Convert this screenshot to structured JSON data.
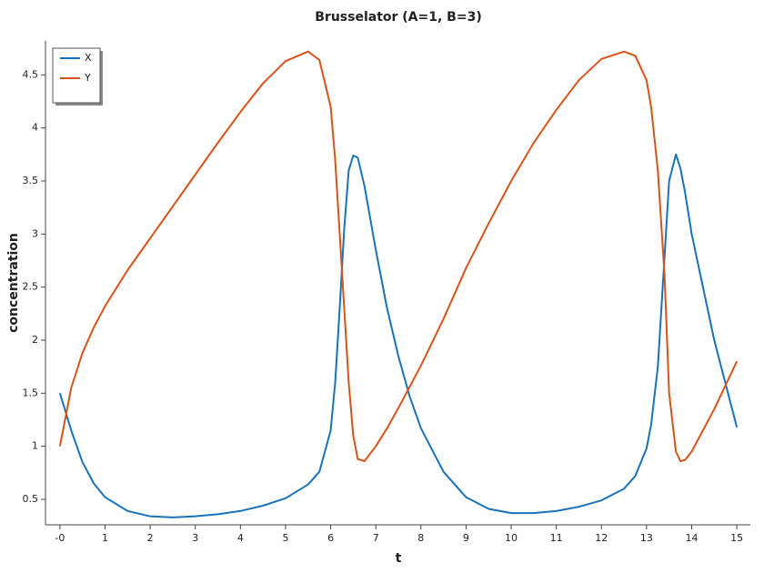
{
  "chart_data": {
    "type": "line",
    "title": "Brusselator (A=1, B=3)",
    "xlabel": "t",
    "ylabel": "concentration",
    "x": [
      0,
      0.25,
      0.5,
      0.75,
      1,
      1.5,
      2,
      2.5,
      3,
      3.5,
      4,
      4.5,
      5,
      5.5,
      5.75,
      6,
      6.1,
      6.2,
      6.3,
      6.4,
      6.5,
      6.6,
      6.75,
      7,
      7.25,
      7.5,
      7.75,
      8,
      8.5,
      9,
      9.5,
      10,
      10.5,
      11,
      11.5,
      12,
      12.5,
      12.75,
      13,
      13.1,
      13.25,
      13.4,
      13.5,
      13.65,
      13.75,
      13.85,
      14,
      14.5,
      15
    ],
    "series": [
      {
        "name": "X",
        "color": "#1a72bb",
        "values": [
          1.5,
          1.15,
          0.85,
          0.65,
          0.52,
          0.39,
          0.34,
          0.33,
          0.34,
          0.36,
          0.39,
          0.44,
          0.51,
          0.64,
          0.76,
          1.15,
          1.6,
          2.3,
          3.05,
          3.6,
          3.74,
          3.72,
          3.45,
          2.85,
          2.3,
          1.85,
          1.47,
          1.17,
          0.76,
          0.52,
          0.41,
          0.37,
          0.37,
          0.39,
          0.43,
          0.49,
          0.6,
          0.72,
          0.98,
          1.2,
          1.75,
          2.8,
          3.5,
          3.75,
          3.62,
          3.4,
          3.0,
          2.0,
          1.18
        ]
      },
      {
        "name": "Y",
        "color": "#d95319",
        "values": [
          1.0,
          1.55,
          1.88,
          2.12,
          2.32,
          2.66,
          2.96,
          3.26,
          3.56,
          3.86,
          4.15,
          4.42,
          4.63,
          4.72,
          4.64,
          4.2,
          3.7,
          3.0,
          2.3,
          1.6,
          1.1,
          0.88,
          0.86,
          1.0,
          1.17,
          1.36,
          1.56,
          1.76,
          2.2,
          2.68,
          3.1,
          3.5,
          3.86,
          4.17,
          4.45,
          4.65,
          4.72,
          4.68,
          4.45,
          4.2,
          3.6,
          2.6,
          1.5,
          0.95,
          0.86,
          0.87,
          0.95,
          1.35,
          1.8
        ]
      }
    ],
    "xlim": [
      -0.32,
      15.3
    ],
    "ylim": [
      0.26,
      4.82
    ],
    "xticks": [
      {
        "value": 0,
        "label": "-0"
      },
      1,
      2,
      3,
      4,
      5,
      6,
      7,
      8,
      9,
      10,
      11,
      12,
      13,
      14,
      15
    ],
    "yticks": [
      0.5,
      1,
      1.5,
      2,
      2.5,
      3,
      3.5,
      4,
      4.5
    ],
    "legend": "upper left",
    "grid": false
  }
}
